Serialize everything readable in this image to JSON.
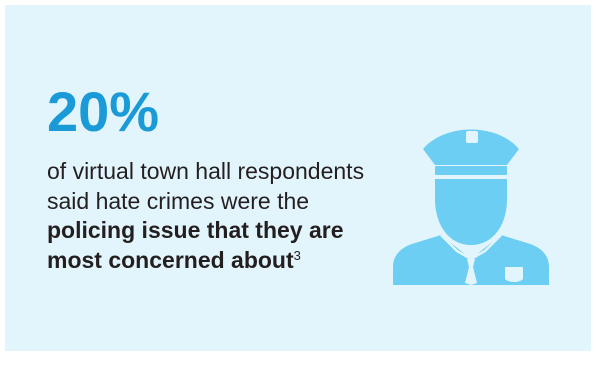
{
  "stat": {
    "value": "20%"
  },
  "description": {
    "part1": "of virtual town hall respondents said hate crimes were the ",
    "bold": "policing issue that they are most concerned about",
    "footnote": "3"
  },
  "icon": "police-officer-icon",
  "colors": {
    "background": "#e3f5fc",
    "accent": "#1a9bd7",
    "icon": "#6ccef3",
    "text": "#231f20"
  }
}
